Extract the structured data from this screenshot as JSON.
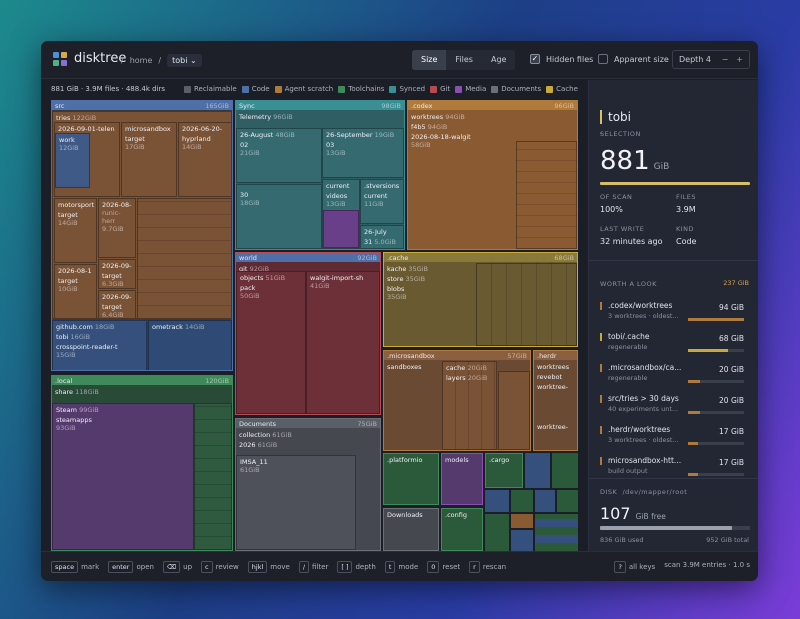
{
  "app": {
    "title": "disktree"
  },
  "breadcrumb": {
    "sep": "/",
    "home": "home",
    "current": "tobi",
    "dropdown": "⌄"
  },
  "toolbar": {
    "tabs": [
      {
        "label": "Size"
      },
      {
        "label": "Files"
      },
      {
        "label": "Age"
      }
    ],
    "hidden_files": {
      "label": "Hidden files",
      "checked": "✓"
    },
    "apparent_size": {
      "label": "Apparent size"
    },
    "depth": {
      "label": "Depth 4",
      "minus": "−",
      "plus": "+"
    }
  },
  "summary": {
    "text": "881 GiB · 3.9M files · 488.4k dirs"
  },
  "legend": [
    {
      "label": "Reclaimable",
      "color": "#5b5f68"
    },
    {
      "label": "Code",
      "color": "#4f6fa8"
    },
    {
      "label": "Agent scratch",
      "color": "#b07a3a"
    },
    {
      "label": "Toolchains",
      "color": "#3e8a5a"
    },
    {
      "label": "Synced",
      "color": "#3a8f95"
    },
    {
      "label": "Git",
      "color": "#b94a52"
    },
    {
      "label": "Media",
      "color": "#8a4fb0"
    },
    {
      "label": "Documents",
      "color": "#6a6f78"
    },
    {
      "label": "Cache",
      "color": "#c9a93a"
    }
  ],
  "treemap": {
    "src": {
      "name": "src",
      "size": "165GiB",
      "tries": "tries",
      "tries_size": "122GiB",
      "t1": "2026-09-01-telen",
      "work": "work",
      "work_size": "12GiB",
      "t2": "microsandbox",
      "target": "target",
      "t2_size": "17GiB",
      "t3": "2026-06-20-",
      "hyprland": "hyprland",
      "t3_size": "14GiB",
      "t4": "motorsport",
      "t4_target": "target",
      "t4_size": "14GiB",
      "t5": "2026-08-",
      "t5_sub": "runic-herr",
      "t5_size": "9.7GiB",
      "t6": "2026-09-",
      "t6_target": "target",
      "t6_size": "6.3GiB",
      "t7": "2026-08-1",
      "t7_target": "target",
      "t7_size": "10GiB",
      "t8": "2026-09-",
      "t8_target": "target",
      "t8_size": "6.4GiB",
      "github": "github.com",
      "github_size": "18GiB",
      "gtobi": "tobi",
      "gtobi_size": "16GiB",
      "crosspoint": "crosspoint-reader-t",
      "crosspoint_size": "15GiB",
      "ometrack": "ometrack",
      "ometrack_size": "14GiB"
    },
    "sync": {
      "name": "Sync",
      "size": "98GiB",
      "telemetry": "Telemetry",
      "telemetry_size": "96GiB",
      "a": "26-August",
      "a_size": "48GiB",
      "a2": "02",
      "a2_size": "21GiB",
      "b": "26-September",
      "b_size": "19GiB",
      "b2": "03",
      "b2_size": "13GiB",
      "c": "30",
      "c_size": "18GiB",
      "cv": "current",
      "cv2": "videos",
      "cv_size": "13GiB",
      "sv": ".stversions",
      "sv2": "current",
      "sv_size": "11GiB",
      "jl": "26-July",
      "jl2": "31",
      "jl_size": "5.0GiB"
    },
    "codex": {
      "name": ".codex",
      "size": "96GiB",
      "worktrees": "worktrees",
      "worktrees_size": "94GiB",
      "f4": "f4b5",
      "f4_size": "94GiB",
      "walgit": "2026-08-18-walgit",
      "walgit_size": "58GiB"
    },
    "world": {
      "name": "world",
      "size": "92GiB",
      "git": "git",
      "git_size": "92GiB",
      "objects": "objects",
      "objects_size": "51GiB",
      "pack": "pack",
      "pack_size": "50GiB",
      "wis": "walgit-import-sh",
      "wis_size": "41GiB"
    },
    "cache": {
      "name": ".cache",
      "size": "68GiB",
      "kache": "kache",
      "kache_size": "35GiB",
      "store": "store",
      "store_size": "35GiB",
      "blobs": "blobs",
      "blobs_size": "35GiB"
    },
    "local": {
      "name": ".local",
      "size": "120GiB",
      "share": "share",
      "share_size": "118GiB",
      "steam": "Steam",
      "steam_size": "99GiB",
      "steamapps": "steamapps",
      "steamapps_size": "93GiB"
    },
    "documents": {
      "name": "Documents",
      "size": "75GiB",
      "collection": "collection",
      "collection_size": "61GiB",
      "y2026": "2026",
      "y2026_size": "61GiB",
      "imsa": "IMSA_11",
      "imsa_size": "61GiB"
    },
    "microsandbox": {
      "name": ".microsandbox",
      "size": "57GiB",
      "sandboxes": "sandboxes",
      "sb_cache": "cache",
      "sb_cache_size": "20GiB",
      "layers": "layers",
      "layers_size": "20GiB"
    },
    "herdr": {
      "name": ".herdr",
      "worktrees": "worktrees",
      "revebot": "revebot",
      "wt2": "worktree-",
      "wt3": "worktree-"
    },
    "platformio": {
      "name": ".platformio"
    },
    "models": {
      "name": "models"
    },
    "cargo": {
      "name": ".cargo"
    },
    "downloads": {
      "name": "Downloads"
    },
    "config": {
      "name": ".config"
    }
  },
  "selection": {
    "label": "SELECTION",
    "name": "tobi",
    "dash": "-",
    "size": "881",
    "unit": "GiB",
    "of_scan_label": "OF SCAN",
    "of_scan": "100%",
    "files_label": "FILES",
    "files": "3.9M",
    "last_write_label": "LAST WRITE",
    "last_write": "32 minutes ago",
    "kind_label": "KIND",
    "kind": "Code"
  },
  "worth_a_look": {
    "label": "WORTH A LOOK",
    "total": "237 GiB",
    "items": [
      {
        "name": ".codex/worktrees",
        "desc": "3 worktrees · oldest...",
        "size": "94 GiB",
        "fill": 1.0,
        "color": "#b07a3a"
      },
      {
        "name": "tobi/.cache",
        "desc": "regenerable",
        "size": "68 GiB",
        "fill": 0.72,
        "color": "#c9a93a"
      },
      {
        "name": ".microsandbox/ca...",
        "desc": "regenerable",
        "size": "20 GiB",
        "fill": 0.21,
        "color": "#b07a3a"
      },
      {
        "name": "src/tries > 30 days",
        "desc": "40 experiments unt...",
        "size": "20 GiB",
        "fill": 0.21,
        "color": "#b07a3a"
      },
      {
        "name": ".herdr/worktrees",
        "desc": "3 worktrees · oldest...",
        "size": "17 GiB",
        "fill": 0.18,
        "color": "#b07a3a"
      },
      {
        "name": "microsandbox-htt...",
        "desc": "build output",
        "size": "17 GiB",
        "fill": 0.18,
        "color": "#b07a3a"
      }
    ]
  },
  "disk": {
    "label": "DISK",
    "device": "/dev/mapper/root",
    "free": "107",
    "free_label": "GiB free",
    "used": "836 GiB used",
    "total": "952 GiB total",
    "used_fraction": 0.878
  },
  "footer": {
    "keys": [
      {
        "key": "space",
        "label": "mark"
      },
      {
        "key": "enter",
        "label": "open"
      },
      {
        "key": "⌫",
        "label": "up"
      },
      {
        "key": "c",
        "label": "review"
      },
      {
        "key": "hjkl",
        "label": "move"
      },
      {
        "key": "/",
        "label": "filter"
      },
      {
        "key": "[ ]",
        "label": "depth"
      },
      {
        "key": "t",
        "label": "mode"
      },
      {
        "key": "0",
        "label": "reset"
      },
      {
        "key": "r",
        "label": "rescan"
      }
    ],
    "help_key": "?",
    "help_label": "all keys",
    "scan": "scan 3.9M entries · 1.0 s"
  }
}
